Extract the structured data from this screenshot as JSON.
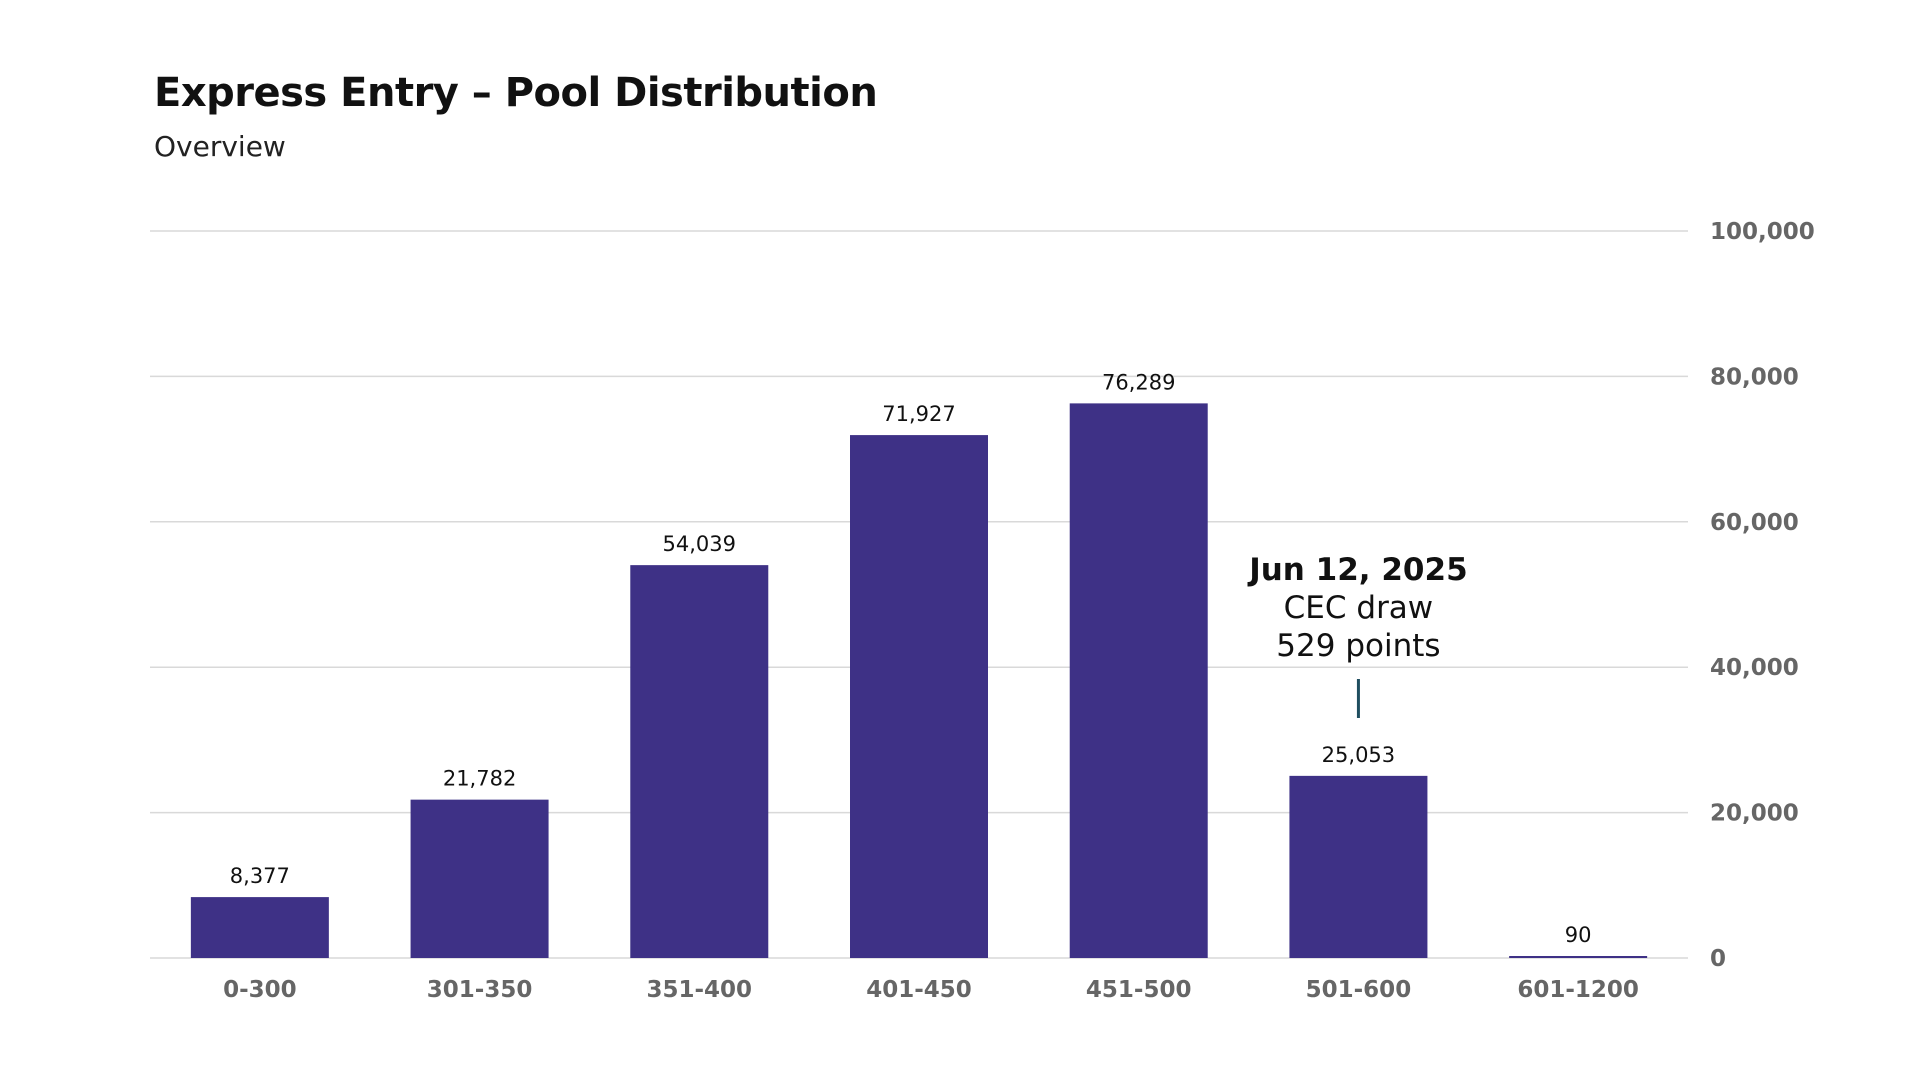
{
  "chart_data": {
    "type": "bar",
    "title": "Express Entry – Pool Distribution",
    "subtitle": "Overview",
    "categories": [
      "0-300",
      "301-350",
      "351-400",
      "401-450",
      "451-500",
      "501-600",
      "601-1200"
    ],
    "values": [
      8377,
      21782,
      54039,
      71927,
      76289,
      25053,
      90
    ],
    "data_labels": [
      "8,377",
      "21,782",
      "54,039",
      "71,927",
      "76,289",
      "25,053",
      "90"
    ],
    "xlabel": "",
    "ylabel": "",
    "ylim": [
      0,
      100000
    ],
    "y_ticks": [
      0,
      20000,
      40000,
      60000,
      80000,
      100000
    ],
    "y_tick_labels": [
      "0",
      "20,000",
      "40,000",
      "60,000",
      "80,000",
      "100,000"
    ],
    "y_axis_side": "right",
    "grid": true,
    "bar_color": "#3e3186",
    "grid_color": "#d9d9d9",
    "annotation": {
      "category": "501-600",
      "date": "Jun 12, 2025",
      "line1": "CEC draw",
      "line2": "529 points",
      "color": "#1f4e5f"
    }
  }
}
